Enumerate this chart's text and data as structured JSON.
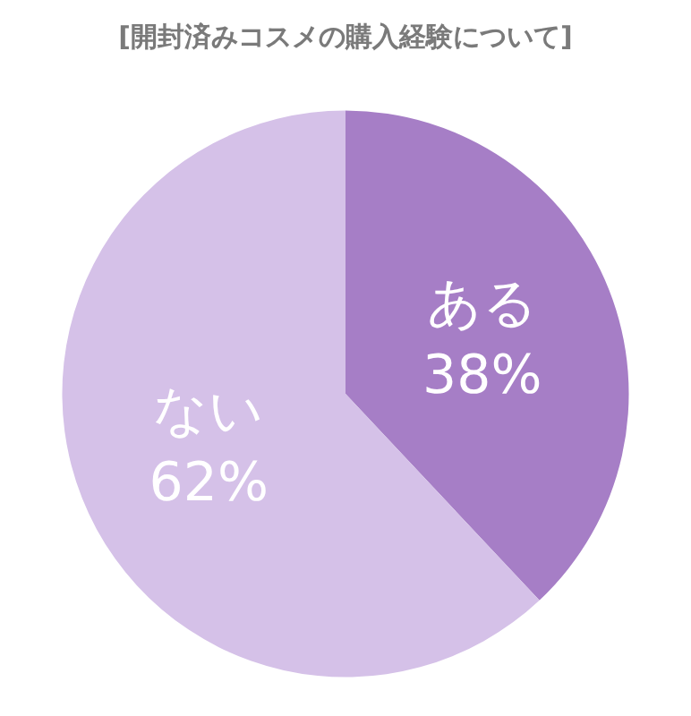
{
  "chart_data": {
    "type": "pie",
    "title": "[開封済みコスメの購入経験について]",
    "categories": [
      "ある",
      "ない"
    ],
    "values": [
      38,
      62
    ],
    "value_labels": [
      "38%",
      "62%"
    ],
    "colors": [
      "#a67ec6",
      "#d5c1e8"
    ],
    "legend": false
  }
}
